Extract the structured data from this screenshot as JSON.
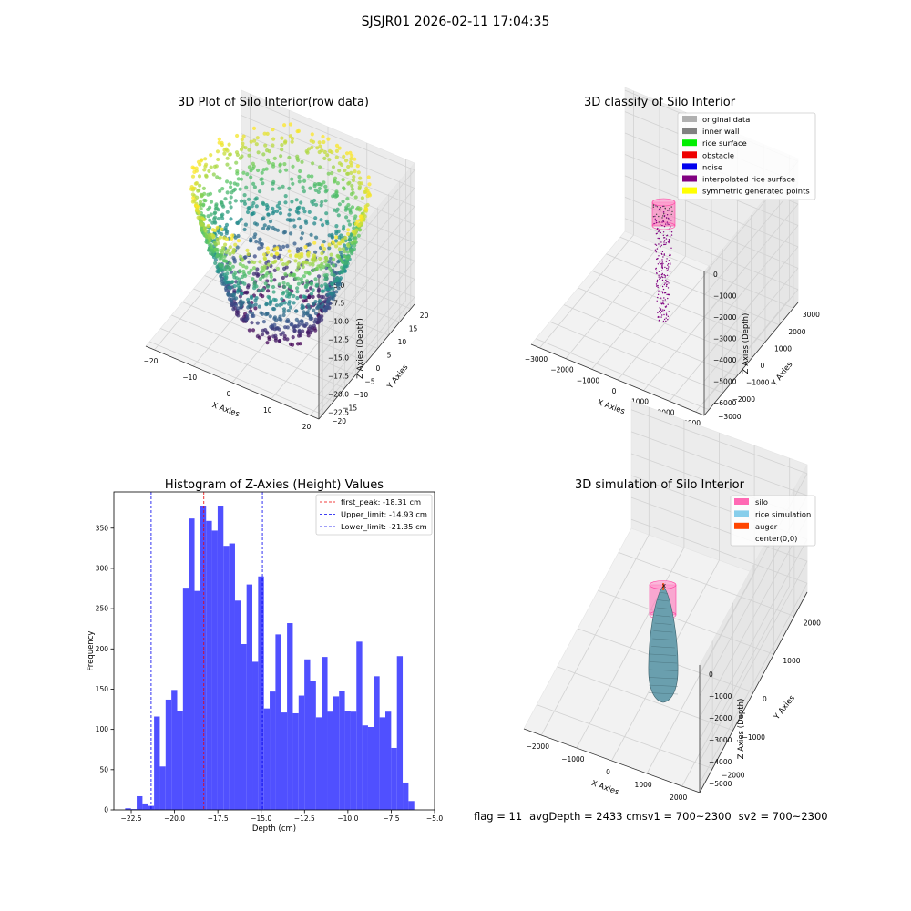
{
  "figure_title": "SJSJR01 2026-02-11 17:04:35",
  "status_line": {
    "flag": "flag = 11",
    "avg_depth": "avgDepth = 2433 cm",
    "sv1": "sv1 = 700~2300",
    "sv2": "sv2 = 700~2300"
  },
  "chart_data": [
    {
      "type": "scatter",
      "title": "3D Plot of Silo Interior(row data)",
      "xlabel": "X Axies",
      "ylabel": "Y Axies",
      "zlabel": "Z Axies (Depth)",
      "xticks": [
        "−20",
        "−10",
        "0",
        "10",
        "20"
      ],
      "yticks": [
        "−20",
        "−15",
        "−10",
        "−5",
        "0",
        "5",
        "10",
        "15",
        "20"
      ],
      "zticks": [
        "−5.0",
        "−7.5",
        "−10.0",
        "−12.5",
        "−15.0",
        "−17.5",
        "−20.0",
        "−22.5"
      ],
      "xlim": [
        -22,
        22
      ],
      "ylim": [
        -22,
        22
      ],
      "zlim": [
        -23.5,
        -4.5
      ],
      "colormap": "viridis",
      "colors": {
        "low": "#440154",
        "mid": "#21918c",
        "high": "#fde725"
      },
      "point_cloud": {
        "shape": "bowl",
        "rim_radius": 20,
        "top_depth": -5.0,
        "bottom_depth": -23.0
      }
    },
    {
      "type": "scatter",
      "title": "3D classify of Silo Interior",
      "xlabel": "X Axies",
      "ylabel": "Y Axies",
      "zlabel": "Z Axies (Depth)",
      "xticks": [
        "−3000",
        "−2000",
        "−1000",
        "0",
        "1000",
        "2000",
        "3000"
      ],
      "yticks": [
        "−3000",
        "−2000",
        "−1000",
        "0",
        "1000",
        "2000",
        "3000"
      ],
      "zticks": [
        "0",
        "−1000",
        "−2000",
        "−3000",
        "−4000",
        "−5000",
        "−6000"
      ],
      "xlim": [
        -3300,
        3300
      ],
      "ylim": [
        -3300,
        3300
      ],
      "zlim": [
        -6500,
        200
      ],
      "legend_position": "top-right",
      "legend": [
        {
          "label": "original data",
          "color": "#b0b0b0"
        },
        {
          "label": "inner wall",
          "color": "#808080"
        },
        {
          "label": "rice surface",
          "color": "#00ee00"
        },
        {
          "label": "obstacle",
          "color": "#ee0000"
        },
        {
          "label": "noise",
          "color": "#0000ee"
        },
        {
          "label": "interpolated rice surface",
          "color": "#800080"
        },
        {
          "label": "symmetric generated points",
          "color": "#ffff00"
        }
      ]
    },
    {
      "type": "bar",
      "title": "Histogram of Z-Axies (Height) Values",
      "xlabel": "Depth (cm)",
      "ylabel": "Frequency",
      "xlim": [
        -23.5,
        -5.0
      ],
      "ylim": [
        0,
        395
      ],
      "xticks": [
        -22.5,
        -20.0,
        -17.5,
        -15.0,
        -12.5,
        -10.0,
        -7.5,
        -5.0
      ],
      "xtick_labels": [
        "−22.5",
        "−20.0",
        "−17.5",
        "−15.0",
        "−12.5",
        "−10.0",
        "−7.5",
        "−5.0"
      ],
      "yticks": [
        0,
        50,
        100,
        150,
        200,
        250,
        300,
        350
      ],
      "bar_color": "#4a4aff",
      "bin_start": -22.85,
      "bin_width": 0.3336,
      "values": [
        2,
        1,
        17,
        8,
        5,
        116,
        54,
        137,
        149,
        123,
        276,
        362,
        272,
        378,
        359,
        347,
        378,
        328,
        331,
        260,
        206,
        280,
        184,
        290,
        126,
        147,
        218,
        121,
        232,
        120,
        142,
        187,
        160,
        115,
        190,
        122,
        141,
        148,
        123,
        122,
        209,
        105,
        103,
        166,
        115,
        122,
        77,
        191,
        34,
        11
      ],
      "lines": [
        {
          "label": "first_peak: -18.31 cm",
          "x": -18.31,
          "color": "#ee0000"
        },
        {
          "label": "Upper_limit: -14.93 cm",
          "x": -14.93,
          "color": "#0000ee"
        },
        {
          "label": "Lower_limit: -21.35 cm",
          "x": -21.35,
          "color": "#0000ee"
        }
      ],
      "legend_position": "top-right"
    },
    {
      "type": "surface",
      "title": "3D simulation of Silo Interior",
      "xlabel": "X Axies",
      "ylabel": "Y Axies",
      "zlabel": "Z Axies (Depth)",
      "xticks": [
        "−2000",
        "−1000",
        "0",
        "1000",
        "2000"
      ],
      "yticks": [
        "−2000",
        "−1000",
        "0",
        "1000",
        "2000"
      ],
      "zticks": [
        "0",
        "−1000",
        "−2000",
        "−3000",
        "−4000",
        "−5000"
      ],
      "xlim": [
        -2500,
        2500
      ],
      "ylim": [
        -2500,
        2500
      ],
      "zlim": [
        -5600,
        400
      ],
      "legend_position": "top-right",
      "legend": [
        {
          "label": "silo",
          "color": "#ff69b4"
        },
        {
          "label": "rice simulation",
          "color": "#87ceeb"
        },
        {
          "label": "auger",
          "color": "#ff4500"
        },
        {
          "label": "center(0,0)",
          "color": ""
        }
      ]
    }
  ]
}
